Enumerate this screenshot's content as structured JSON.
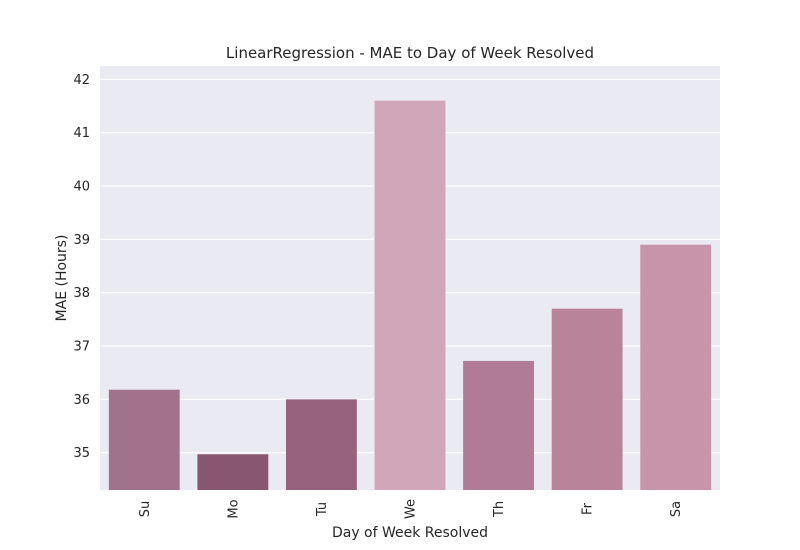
{
  "chart_data": {
    "type": "bar",
    "title": "LinearRegression - MAE to Day of Week Resolved",
    "xlabel": "Day of Week Resolved",
    "ylabel": "MAE (Hours)",
    "categories": [
      "Su",
      "Mo",
      "Tu",
      "We",
      "Th",
      "Fr",
      "Sa"
    ],
    "values": [
      36.18,
      34.97,
      36.0,
      41.6,
      36.72,
      37.7,
      38.9
    ],
    "bar_colors": [
      "#a2718b",
      "#87576f",
      "#96627c",
      "#d2a6b9",
      "#b07b94",
      "#b98399",
      "#c794aa"
    ],
    "ylim": [
      34.3,
      42.25
    ],
    "yticks": [
      35,
      36,
      37,
      38,
      39,
      40,
      41,
      42
    ],
    "grid": true,
    "background": "#eaeaf2"
  }
}
